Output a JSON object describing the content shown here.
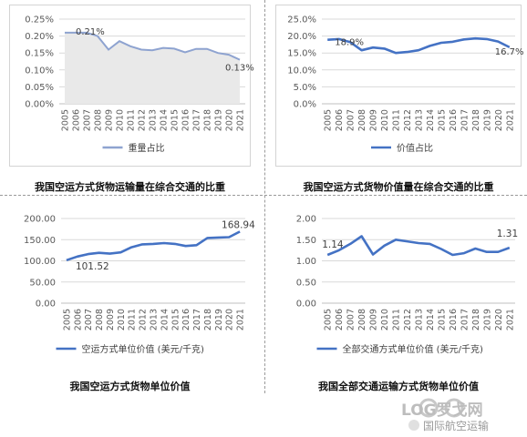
{
  "charts": [
    {
      "caption": "我国空运方式货物运输量在综合交通的比重",
      "chart_data": {
        "type": "area",
        "x": [
          "2005",
          "2006",
          "2007",
          "2008",
          "2009",
          "2010",
          "2011",
          "2012",
          "2013",
          "2014",
          "2015",
          "2016",
          "2017",
          "2018",
          "2019",
          "2020",
          "2021"
        ],
        "series": [
          {
            "name": "重量占比",
            "values": [
              0.21,
              0.21,
              0.21,
              0.2,
              0.16,
              0.185,
              0.17,
              0.16,
              0.158,
              0.165,
              0.163,
              0.152,
              0.162,
              0.162,
              0.15,
              0.145,
              0.13
            ]
          }
        ],
        "ylim": [
          0,
          0.25
        ],
        "yticks": [
          "0.00%",
          "0.05%",
          "0.10%",
          "0.15%",
          "0.20%",
          "0.25%"
        ],
        "labels": {
          "first": "0.21%",
          "last": "0.13%"
        },
        "legend": "bottom",
        "color": "#8ea3d0"
      }
    },
    {
      "caption": "我国空运方式货物价值量在综合交通的比重",
      "chart_data": {
        "type": "line",
        "x": [
          "2005",
          "2006",
          "2007",
          "2008",
          "2009",
          "2010",
          "2011",
          "2012",
          "2013",
          "2014",
          "2015",
          "2016",
          "2017",
          "2018",
          "2019",
          "2020",
          "2021"
        ],
        "series": [
          {
            "name": "价值占比",
            "values": [
              18.9,
              19.1,
              18.2,
              15.8,
              16.6,
              16.3,
              15.0,
              15.3,
              15.8,
              17.1,
              18.0,
              18.3,
              19.0,
              19.3,
              19.1,
              18.4,
              16.7
            ]
          }
        ],
        "ylim": [
          0,
          25
        ],
        "yticks": [
          "0.0%",
          "5.0%",
          "10.0%",
          "15.0%",
          "20.0%",
          "25.0%"
        ],
        "labels": {
          "first": "18.9%",
          "last": "16.7%"
        },
        "legend": "bottom",
        "color": "#4472c4"
      }
    },
    {
      "caption": "我国空运方式货物单位价值",
      "chart_data": {
        "type": "line",
        "x": [
          "2005",
          "2006",
          "2007",
          "2008",
          "2009",
          "2010",
          "2011",
          "2012",
          "2013",
          "2014",
          "2015",
          "2016",
          "2017",
          "2018",
          "2019",
          "2020",
          "2021"
        ],
        "series": [
          {
            "name": "空运方式单位价值 (美元/千克)",
            "values": [
              101.52,
              110,
              116,
              119,
              117,
              120,
              132,
              139,
              140,
              142,
              140,
              135,
              137,
              154,
              155,
              156,
              168.94
            ]
          }
        ],
        "ylim": [
          0,
          200
        ],
        "yticks": [
          "0.00",
          "50.00",
          "100.00",
          "150.00",
          "200.00"
        ],
        "labels": {
          "first": "101.52",
          "last": "168.94"
        },
        "legend": "bottom",
        "color": "#4472c4"
      }
    },
    {
      "caption": "我国全部交通运输方式货物单位价值",
      "chart_data": {
        "type": "line",
        "x": [
          "2005",
          "2006",
          "2007",
          "2008",
          "2009",
          "2010",
          "2011",
          "2012",
          "2013",
          "2014",
          "2015",
          "2016",
          "2017",
          "2018",
          "2019",
          "2020",
          "2021"
        ],
        "series": [
          {
            "name": "全部交通方式单位价值 (美元/千克)",
            "values": [
              1.14,
              1.25,
              1.4,
              1.58,
              1.15,
              1.36,
              1.5,
              1.46,
              1.42,
              1.4,
              1.28,
              1.14,
              1.18,
              1.29,
              1.21,
              1.21,
              1.31
            ]
          }
        ],
        "ylim": [
          0,
          2
        ],
        "yticks": [
          "0.00",
          "0.50",
          "1.00",
          "1.50",
          "2.00"
        ],
        "labels": {
          "first": "1.14",
          "last": "1.31"
        },
        "legend": "bottom",
        "color": "#4472c4"
      }
    }
  ],
  "watermark": {
    "logo_text": "LOG罗戈网",
    "subtitle": "国际航空运输"
  }
}
